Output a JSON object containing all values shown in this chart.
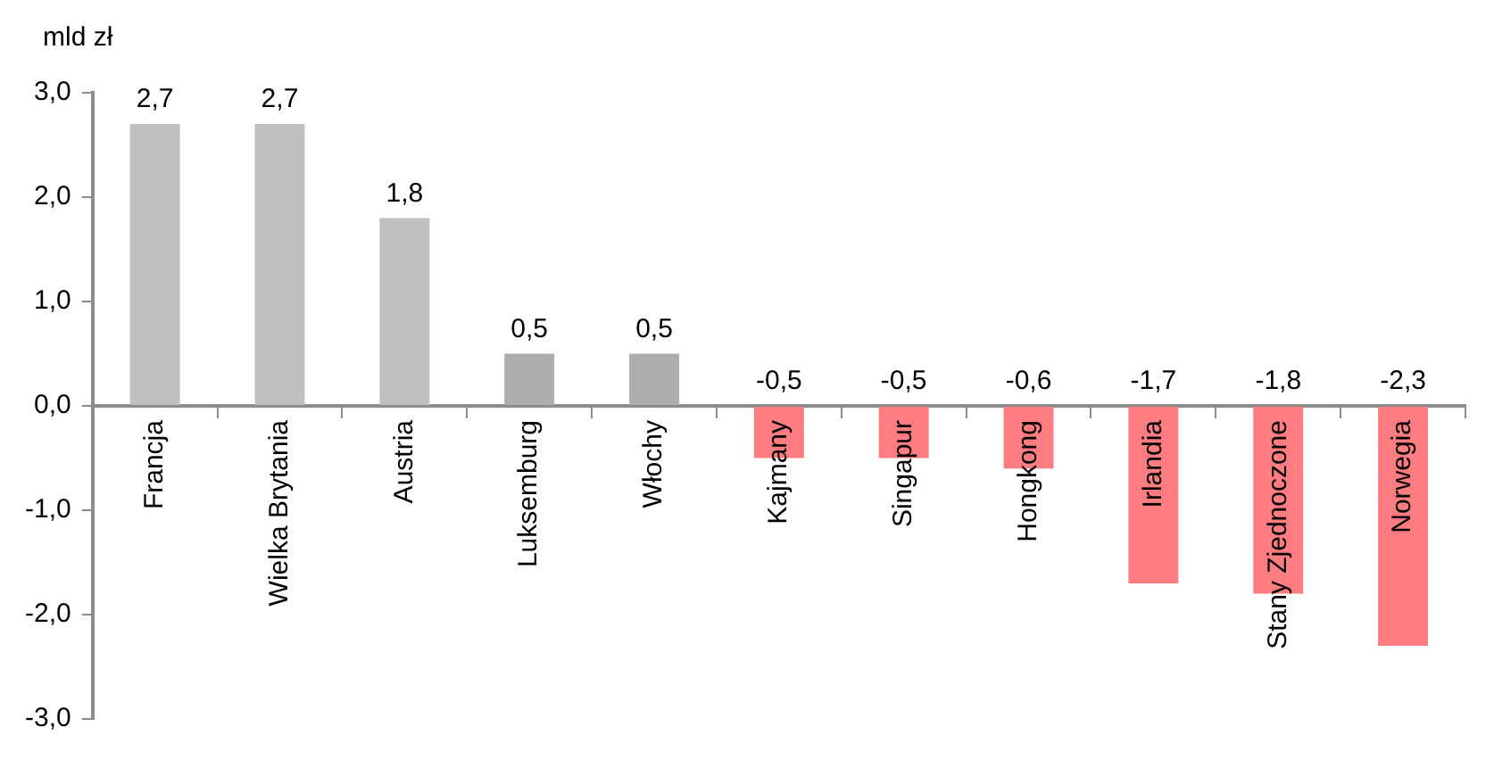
{
  "chart_data": {
    "type": "bar",
    "ylabel": "mld zł",
    "categories": [
      "Francja",
      "Wielka Brytania",
      "Austria",
      "Luksemburg",
      "Włochy",
      "Kajmany",
      "Singapur",
      "Hongkong",
      "Irlandia",
      "Stany Zjednoczone",
      "Norwegia"
    ],
    "values": [
      2.7,
      2.7,
      1.8,
      0.5,
      0.5,
      -0.5,
      -0.5,
      -0.6,
      -1.7,
      -1.8,
      -2.3
    ],
    "colors": [
      "#bfbfbf",
      "#bfbfbf",
      "#bfbfbf",
      "#adadad",
      "#adadad",
      "#ff7c80",
      "#ff7c80",
      "#ff7c80",
      "#ff7c80",
      "#ff7c80",
      "#ff7c80"
    ],
    "value_labels": [
      "2,7",
      "2,7",
      "1,8",
      "0,5",
      "0,5",
      "-0,5",
      "-0,5",
      "-0,6",
      "-1,7",
      "-1,8",
      "-2,3"
    ],
    "ylim": [
      -3,
      3
    ],
    "yticks": [
      {
        "value": -3,
        "label": "-3,0"
      },
      {
        "value": -2,
        "label": "-2,0"
      },
      {
        "value": -1,
        "label": "-1,0"
      },
      {
        "value": 0,
        "label": "0,0"
      },
      {
        "value": 1,
        "label": "1,0"
      },
      {
        "value": 2,
        "label": "2,0"
      },
      {
        "value": 3,
        "label": "3,0"
      }
    ],
    "grid": false,
    "legend": false
  }
}
